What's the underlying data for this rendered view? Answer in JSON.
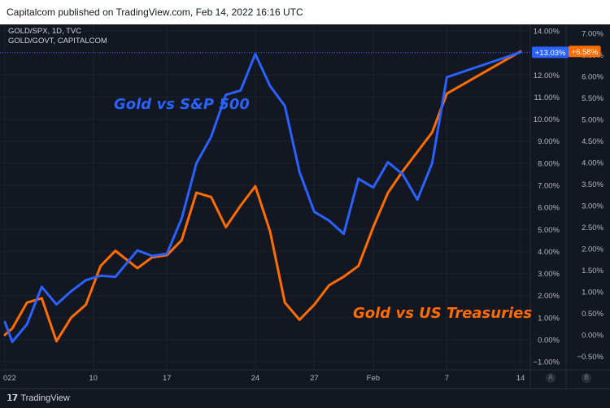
{
  "header": {
    "published": "Capitalcom published on TradingView.com, Feb 14, 2022 16:16 UTC"
  },
  "symbols": {
    "line1": "GOLD/SPX, 1D, TVC",
    "line2": "GOLD/GOVT, CAPITALCOM"
  },
  "footer": {
    "brand": "TradingView",
    "axis_a": "A",
    "axis_b": "B"
  },
  "colors": {
    "background": "#131722",
    "blue": "#2962ff",
    "orange": "#ff6d00",
    "grid": "#1e222d",
    "text": "#b2b5be"
  },
  "chart_data": {
    "type": "line",
    "x_tick_labels": [
      "022",
      "10",
      "17",
      "24",
      "27",
      "Feb",
      "7",
      "14"
    ],
    "x_tick_index": [
      0,
      6,
      11,
      17,
      21,
      25,
      30,
      35
    ],
    "series": [
      {
        "name": "Gold vs S&P 500",
        "color": "#2962ff",
        "axis": "A",
        "last_label": "+13.03%",
        "values": [
          0.8,
          -0.1,
          0.7,
          2.4,
          1.6,
          2.2,
          2.7,
          2.9,
          2.85,
          4.05,
          3.8,
          3.9,
          5.5,
          8.0,
          9.2,
          11.1,
          11.3,
          12.95,
          11.5,
          10.6,
          7.6,
          5.8,
          5.4,
          4.8,
          7.3,
          6.9,
          8.05,
          7.5,
          6.35,
          8.0,
          11.9,
          13.03
        ],
        "x_index": [
          0,
          0.5,
          1.5,
          2.5,
          3.5,
          4.5,
          5.5,
          6.5,
          7.5,
          9,
          10,
          11,
          12,
          13,
          14,
          15,
          16,
          17,
          18,
          19,
          20,
          21,
          22,
          23,
          24,
          25,
          26,
          27,
          28,
          29,
          30,
          35
        ]
      },
      {
        "name": "Gold vs US Treasuries",
        "color": "#ff6d00",
        "axis": "B",
        "last_label": "+6.58%",
        "values": [
          0.0,
          0.15,
          0.75,
          0.85,
          -0.15,
          0.4,
          0.7,
          1.6,
          1.95,
          1.55,
          1.8,
          1.85,
          2.2,
          3.3,
          3.2,
          2.5,
          3.0,
          3.45,
          2.4,
          0.75,
          0.35,
          0.7,
          1.15,
          1.35,
          1.6,
          2.5,
          3.3,
          3.8,
          4.25,
          4.7,
          5.6,
          6.58
        ],
        "x_index": [
          0,
          0.5,
          1.5,
          2.5,
          3.5,
          4.5,
          5.5,
          6.5,
          7.5,
          9,
          10,
          11,
          12,
          13,
          14,
          15,
          16,
          17,
          18,
          19,
          20,
          21,
          22,
          23,
          24,
          25,
          26,
          27,
          28,
          29,
          30,
          35
        ]
      }
    ],
    "axis_a": {
      "min": -1.0,
      "max": 14.0,
      "ticks": [
        "14.00%",
        "13.00%",
        "12.00%",
        "11.00%",
        "10.00%",
        "9.00%",
        "8.00%",
        "7.00%",
        "6.00%",
        "5.00%",
        "4.00%",
        "3.00%",
        "2.00%",
        "1.00%",
        "0.00%",
        "−1.00%"
      ],
      "tick_values": [
        14,
        13,
        12,
        11,
        10,
        9,
        8,
        7,
        6,
        5,
        4,
        3,
        2,
        1,
        0,
        -1
      ]
    },
    "axis_b": {
      "min": -0.5,
      "max": 7.0,
      "ticks": [
        "7.00%",
        "6.50%",
        "6.00%",
        "5.50%",
        "5.00%",
        "4.50%",
        "4.00%",
        "3.50%",
        "3.00%",
        "2.50%",
        "2.00%",
        "1.50%",
        "1.00%",
        "0.50%",
        "0.00%",
        "−0.50%"
      ],
      "tick_values": [
        7,
        6.5,
        6,
        5.5,
        5,
        4.5,
        4,
        3.5,
        3,
        2.5,
        2,
        1.5,
        1,
        0.5,
        0,
        -0.5
      ]
    },
    "annotations": [
      {
        "text": "Gold vs S&P 500",
        "color": "#2962ff"
      },
      {
        "text": "Gold vs US Treasuries",
        "color": "#ff6d00"
      }
    ],
    "grid": true
  }
}
